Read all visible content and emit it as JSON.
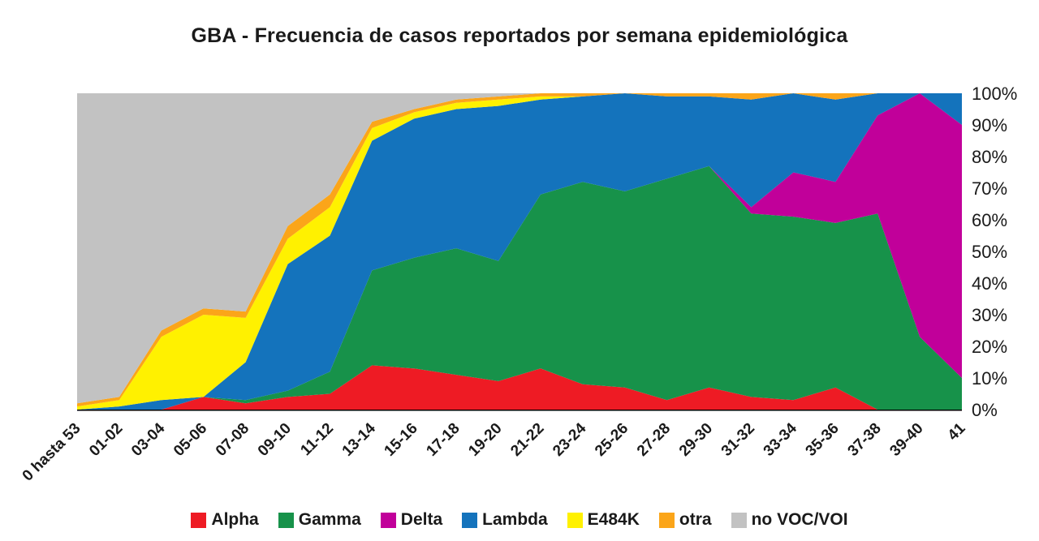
{
  "title": "GBA - Frecuencia de casos reportados por semana epidemiológica",
  "chart_data": {
    "type": "area",
    "stacked": true,
    "percent": true,
    "title": "GBA - Frecuencia de casos reportados por semana epidemiológica",
    "xlabel": "",
    "ylabel": "",
    "ylim": [
      0,
      100
    ],
    "grid": false,
    "legend_position": "bottom",
    "categories": [
      "0 hasta 53",
      "01-02",
      "03-04",
      "05-06",
      "07-08",
      "09-10",
      "11-12",
      "13-14",
      "15-16",
      "17-18",
      "19-20",
      "21-22",
      "23-24",
      "25-26",
      "27-28",
      "29-30",
      "31-32",
      "33-34",
      "35-36",
      "37-38",
      "39-40",
      "41"
    ],
    "y_ticks": [
      "0%",
      "10%",
      "20%",
      "30%",
      "40%",
      "50%",
      "60%",
      "70%",
      "80%",
      "90%",
      "100%"
    ],
    "series": [
      {
        "name": "Alpha",
        "color": "#EE1B24",
        "values": [
          0,
          0,
          0,
          4,
          2,
          4,
          5,
          14,
          13,
          11,
          9,
          13,
          8,
          7,
          3,
          7,
          4,
          3,
          7,
          0,
          0,
          0
        ]
      },
      {
        "name": "Gamma",
        "color": "#17924A",
        "values": [
          0,
          0,
          0,
          0,
          1,
          2,
          7,
          30,
          35,
          40,
          38,
          55,
          64,
          62,
          70,
          70,
          58,
          58,
          52,
          62,
          23,
          10
        ]
      },
      {
        "name": "Delta",
        "color": "#C1009A",
        "values": [
          0,
          0,
          0,
          0,
          0,
          0,
          0,
          0,
          0,
          0,
          0,
          0,
          0,
          0,
          0,
          0,
          2,
          14,
          13,
          31,
          77,
          80
        ]
      },
      {
        "name": "Lambda",
        "color": "#1473BC",
        "values": [
          0,
          1,
          3,
          0,
          12,
          40,
          43,
          41,
          44,
          44,
          49,
          30,
          27,
          31,
          26,
          22,
          34,
          25,
          26,
          7,
          0,
          10
        ]
      },
      {
        "name": "E484K",
        "color": "#FFF100",
        "values": [
          1,
          2,
          20,
          26,
          14,
          8,
          9,
          4,
          2,
          2,
          2,
          1,
          0,
          0,
          0,
          0,
          0,
          0,
          0,
          0,
          0,
          0
        ]
      },
      {
        "name": "otra",
        "color": "#FBA519",
        "values": [
          1,
          1,
          2,
          2,
          2,
          4,
          4,
          2,
          1,
          1,
          1,
          1,
          1,
          0,
          1,
          1,
          2,
          0,
          2,
          0,
          0,
          0
        ]
      },
      {
        "name": "no VOC/VOI",
        "color": "#C2C2C2",
        "values": [
          98,
          96,
          75,
          68,
          69,
          42,
          32,
          9,
          5,
          2,
          1,
          0,
          0,
          0,
          0,
          0,
          0,
          0,
          0,
          0,
          0,
          0
        ]
      }
    ],
    "axis_color": "#000000"
  }
}
